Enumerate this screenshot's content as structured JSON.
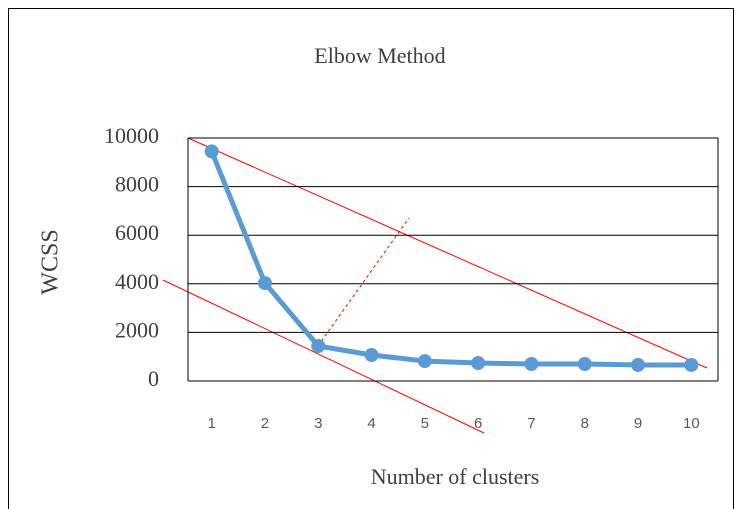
{
  "chart_data": {
    "type": "line",
    "title": "Elbow Method",
    "x_label": "Number of clusters",
    "y_label": "WCSS",
    "categories": [
      "1",
      "2",
      "3",
      "4",
      "5",
      "6",
      "7",
      "8",
      "9",
      "10"
    ],
    "values": [
      9450,
      4030,
      1440,
      1070,
      820,
      740,
      700,
      700,
      660,
      660
    ],
    "color": "#5b9bd5",
    "ylim": [
      0,
      10000
    ],
    "yticks": [
      0,
      2000,
      4000,
      6000,
      8000,
      10000
    ],
    "grid": true
  }
}
